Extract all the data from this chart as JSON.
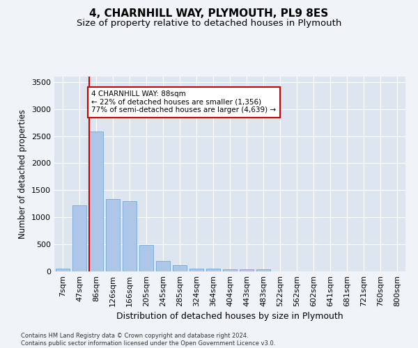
{
  "title1": "4, CHARNHILL WAY, PLYMOUTH, PL9 8ES",
  "title2": "Size of property relative to detached houses in Plymouth",
  "xlabel": "Distribution of detached houses by size in Plymouth",
  "ylabel": "Number of detached properties",
  "footnote1": "Contains HM Land Registry data © Crown copyright and database right 2024.",
  "footnote2": "Contains public sector information licensed under the Open Government Licence v3.0.",
  "bar_labels": [
    "7sqm",
    "47sqm",
    "86sqm",
    "126sqm",
    "166sqm",
    "205sqm",
    "245sqm",
    "285sqm",
    "324sqm",
    "364sqm",
    "404sqm",
    "443sqm",
    "483sqm",
    "522sqm",
    "562sqm",
    "602sqm",
    "641sqm",
    "681sqm",
    "721sqm",
    "760sqm",
    "800sqm"
  ],
  "bar_values": [
    55,
    1220,
    2580,
    1340,
    1300,
    490,
    195,
    110,
    55,
    50,
    45,
    35,
    35,
    5,
    5,
    5,
    5,
    5,
    5,
    5,
    5
  ],
  "bar_color": "#aec6e8",
  "bar_edge_color": "#7bafd4",
  "vline_color": "#cc0000",
  "vline_pos": 1.575,
  "annotation_text": "4 CHARNHILL WAY: 88sqm\n← 22% of detached houses are smaller (1,356)\n77% of semi-detached houses are larger (4,639) →",
  "annotation_box_color": "#ffffff",
  "annotation_box_edge": "#cc0000",
  "ylim": [
    0,
    3600
  ],
  "yticks": [
    0,
    500,
    1000,
    1500,
    2000,
    2500,
    3000,
    3500
  ],
  "fig_bg_color": "#f0f4f9",
  "plot_bg_color": "#dde6f0",
  "title1_fontsize": 11,
  "title2_fontsize": 9.5,
  "xlabel_fontsize": 9,
  "ylabel_fontsize": 8.5,
  "tick_fontsize": 8,
  "annot_fontsize": 7.5
}
